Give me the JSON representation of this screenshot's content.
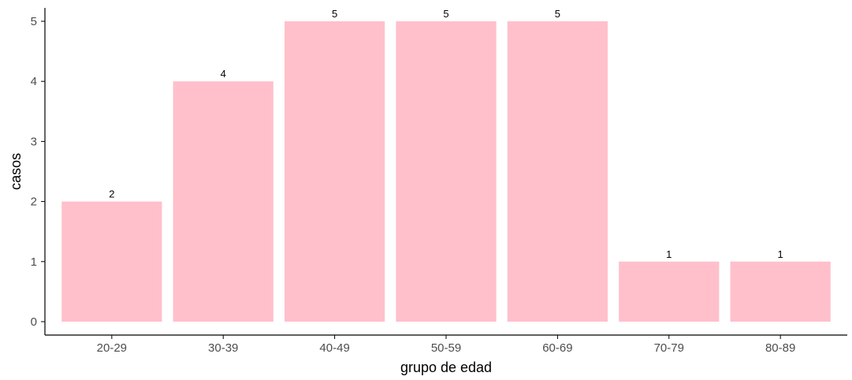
{
  "chart_data": {
    "type": "bar",
    "title": "",
    "xlabel": "grupo de edad",
    "ylabel": "casos",
    "categories": [
      "20-29",
      "30-39",
      "40-49",
      "50-59",
      "60-69",
      "70-79",
      "80-89"
    ],
    "values": [
      2,
      4,
      5,
      5,
      5,
      1,
      1
    ],
    "data_labels": [
      "2",
      "4",
      "5",
      "5",
      "5",
      "1",
      "1"
    ],
    "y_ticks": [
      0,
      1,
      2,
      3,
      4,
      5
    ],
    "ylim": [
      0,
      5.2
    ],
    "grid": false,
    "legend": "none",
    "bar_color": "#ffc0cb",
    "axis_color": "#000000",
    "tick_label_color": "#4d4d4d"
  }
}
